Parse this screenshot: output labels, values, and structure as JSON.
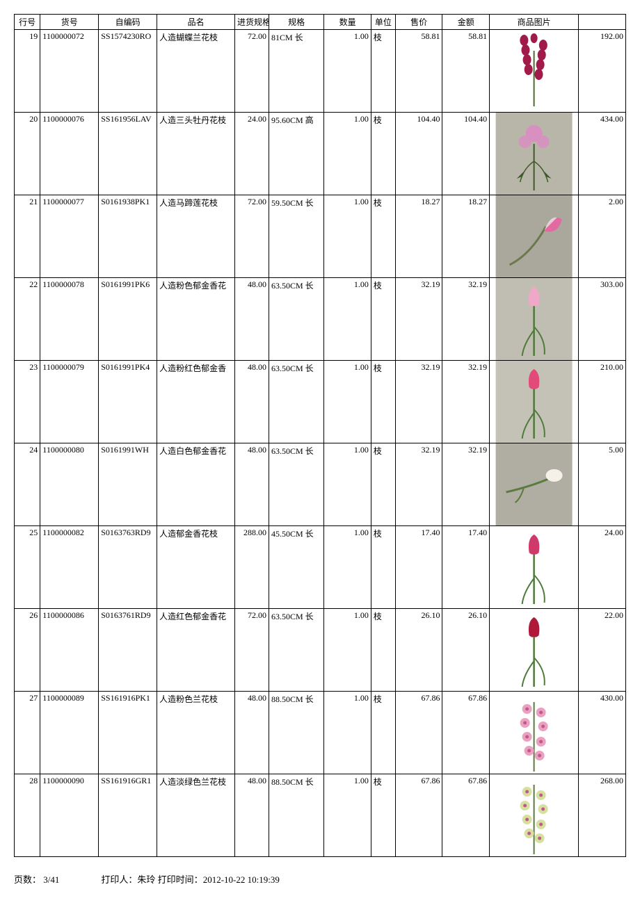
{
  "columns": {
    "rownum": "行号",
    "sku": "货号",
    "code": "自编码",
    "name": "品名",
    "inspec": "进货规格",
    "spec": "规格",
    "qty": "数量",
    "unit": "单位",
    "price": "售价",
    "amount": "金额",
    "image": "商品图片",
    "last": ""
  },
  "rows": [
    {
      "rownum": "19",
      "sku": "1100000072",
      "code": "SS1574230RO",
      "name": "人造蝴蝶兰花枝",
      "inspec": "72.00",
      "spec": "81CM 长",
      "qty": "1.00",
      "unit": "枝",
      "price": "58.81",
      "amount": "58.81",
      "image": {
        "bg": "#ffffff",
        "flower": "#a01a4a",
        "stem": "#4a6b2f",
        "shape": "spike"
      },
      "last": "192.00"
    },
    {
      "rownum": "20",
      "sku": "1100000076",
      "code": "SS161956LAV",
      "name": "人造三头牡丹花枝",
      "inspec": "24.00",
      "spec": "95.60CM 高",
      "qty": "1.00",
      "unit": "枝",
      "price": "104.40",
      "amount": "104.40",
      "image": {
        "bg": "#b8b6a8",
        "flower": "#d890c0",
        "stem": "#3f5a2a",
        "shape": "cluster"
      },
      "last": "434.00"
    },
    {
      "rownum": "21",
      "sku": "1100000077",
      "code": "S0161938PK1",
      "name": "人造马蹄莲花枝",
      "inspec": "72.00",
      "spec": "59.50CM 长",
      "qty": "1.00",
      "unit": "枝",
      "price": "18.27",
      "amount": "18.27",
      "image": {
        "bg": "#aaa79c",
        "flower": "#e26aa0",
        "stem": "#6a7a4a",
        "shape": "calla"
      },
      "last": "2.00"
    },
    {
      "rownum": "22",
      "sku": "1100000078",
      "code": "S0161991PK6",
      "name": "人造粉色郁金香花",
      "inspec": "48.00",
      "spec": "63.50CM 长",
      "qty": "1.00",
      "unit": "枝",
      "price": "32.19",
      "amount": "32.19",
      "image": {
        "bg": "#c0beb2",
        "flower": "#f0a8c8",
        "stem": "#4f7a3a",
        "shape": "tulip"
      },
      "last": "303.00"
    },
    {
      "rownum": "23",
      "sku": "1100000079",
      "code": "S0161991PK4",
      "name": "人造粉红色郁金香",
      "inspec": "48.00",
      "spec": "63.50CM 长",
      "qty": "1.00",
      "unit": "枝",
      "price": "32.19",
      "amount": "32.19",
      "image": {
        "bg": "#c4c2b6",
        "flower": "#e24a7a",
        "stem": "#4f7a3a",
        "shape": "tulip"
      },
      "last": "210.00"
    },
    {
      "rownum": "24",
      "sku": "1100000080",
      "code": "S0161991WH",
      "name": "人造白色郁金香花",
      "inspec": "48.00",
      "spec": "63.50CM 长",
      "qty": "1.00",
      "unit": "枝",
      "price": "32.19",
      "amount": "32.19",
      "image": {
        "bg": "#b0aea2",
        "flower": "#f5f0e8",
        "stem": "#5a7a3f",
        "shape": "tulip-side"
      },
      "last": "5.00"
    },
    {
      "rownum": "25",
      "sku": "1100000082",
      "code": "S0163763RD9",
      "name": "人造郁金香花枝",
      "inspec": "288.00",
      "spec": "45.50CM 长",
      "qty": "1.00",
      "unit": "枝",
      "price": "17.40",
      "amount": "17.40",
      "image": {
        "bg": "#ffffff",
        "flower": "#d03a6a",
        "stem": "#4f7a3a",
        "shape": "tulip"
      },
      "last": "24.00"
    },
    {
      "rownum": "26",
      "sku": "1100000086",
      "code": "S0163761RD9",
      "name": "人造红色郁金香花",
      "inspec": "72.00",
      "spec": "63.50CM 长",
      "qty": "1.00",
      "unit": "枝",
      "price": "26.10",
      "amount": "26.10",
      "image": {
        "bg": "#ffffff",
        "flower": "#b0183a",
        "stem": "#4f7a3a",
        "shape": "tulip"
      },
      "last": "22.00"
    },
    {
      "rownum": "27",
      "sku": "1100000089",
      "code": "SS161916PK1",
      "name": "人造粉色兰花枝",
      "inspec": "48.00",
      "spec": "88.50CM 长",
      "qty": "1.00",
      "unit": "枝",
      "price": "67.86",
      "amount": "67.86",
      "image": {
        "bg": "#ffffff",
        "flower": "#eaa0c0",
        "stem": "#5a7a3f",
        "shape": "orchid"
      },
      "last": "430.00"
    },
    {
      "rownum": "28",
      "sku": "1100000090",
      "code": "SS161916GR1",
      "name": "人造淡绿色兰花枝",
      "inspec": "48.00",
      "spec": "88.50CM 长",
      "qty": "1.00",
      "unit": "枝",
      "price": "67.86",
      "amount": "67.86",
      "image": {
        "bg": "#ffffff",
        "flower": "#d8e0a0",
        "stem": "#5a7a3f",
        "shape": "orchid"
      },
      "last": "268.00"
    }
  ],
  "footer": {
    "page_label": "页数：",
    "page_value": "3/41",
    "printer_label": "打印人：",
    "printer_value": "朱玲",
    "time_label": "打印时间：",
    "time_value": "2012-10-22 10:19:39"
  }
}
